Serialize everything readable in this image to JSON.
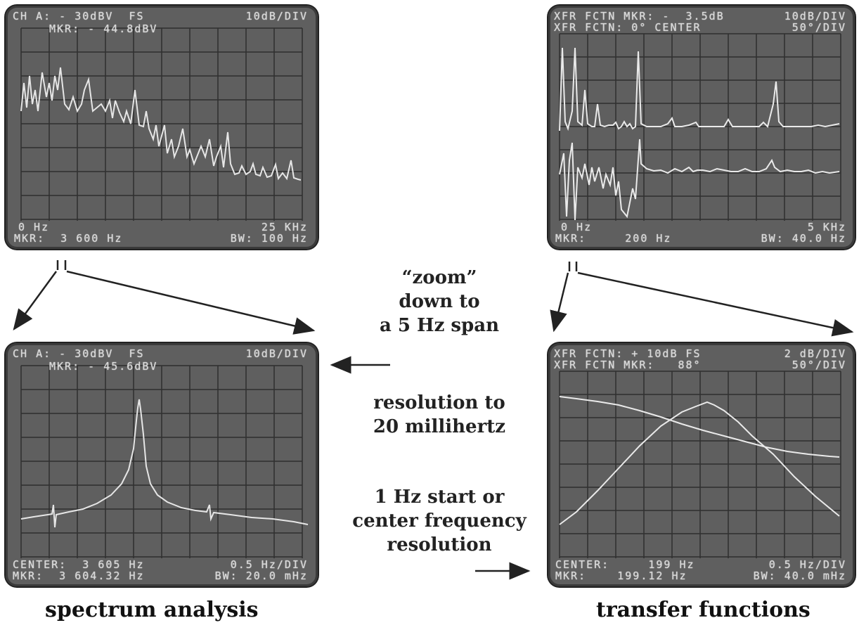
{
  "screens": {
    "top_left": {
      "hdr1": "CH A: - 30dBV  FS",
      "hdr1r": "10dB/DIV",
      "hdr2": "MKR: - 44.8dBV",
      "ftr1": "0 Hz",
      "ftr1r": "25 KHz",
      "ftr2": "MKR:  3 600 Hz",
      "ftr2r": "BW: 100 Hz"
    },
    "top_right": {
      "hdr1": "XFR FCTN MKR: -  3.5dB",
      "hdr1r": "10dB/DIV",
      "hdr2": "XFR FCTN: 0° CENTER",
      "hdr2r": "50°/DIV",
      "ftr1": "0 Hz",
      "ftr1r": "5 KHz",
      "ftr2": "MKR:     200 Hz",
      "ftr2r": "BW: 40.0 Hz"
    },
    "bottom_left": {
      "hdr1": "CH A: - 30dBV  FS",
      "hdr1r": "10dB/DIV",
      "hdr2": "MKR: - 45.6dBV",
      "ftr1": "CENTER:  3 605 Hz",
      "ftr1r": "0.5 Hz/DIV",
      "ftr2": "MKR:  3 604.32 Hz",
      "ftr2r": "BW: 20.0 mHz"
    },
    "bottom_right": {
      "hdr1": "XFR FCTN: + 10dB FS",
      "hdr1r": "2 dB/DIV",
      "hdr2": "XFR FCTN MKR:   88°",
      "hdr2r": "50°/DIV",
      "ftr1": "CENTER:     199 Hz",
      "ftr1r": "0.5 Hz/DIV",
      "ftr2": "MKR:    199.12 Hz",
      "ftr2r": "BW: 40.0 mHz"
    }
  },
  "captions": {
    "zoom_line1": "“zoom”",
    "zoom_line2": "down to",
    "zoom_line3": "a 5 Hz span",
    "res_line1": "resolution to",
    "res_line2": "20 millihertz",
    "start_line1": "1 Hz start or",
    "start_line2": "center frequency",
    "start_line3": "resolution",
    "left_label": "spectrum analysis",
    "right_label": "transfer functions"
  }
}
